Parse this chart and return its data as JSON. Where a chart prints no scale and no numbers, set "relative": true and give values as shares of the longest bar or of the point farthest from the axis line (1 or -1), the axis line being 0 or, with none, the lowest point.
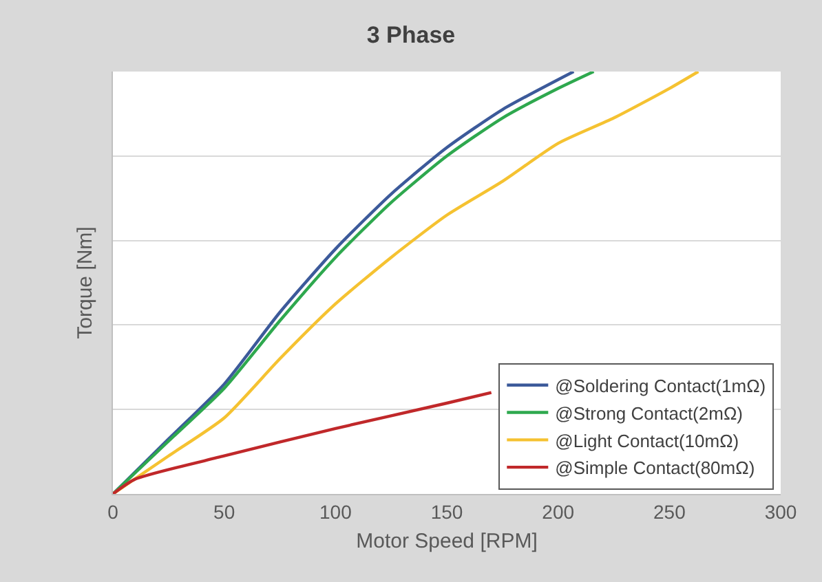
{
  "chart_data": {
    "type": "line",
    "title": "3 Phase",
    "xlabel": "Motor Speed [RPM]",
    "ylabel": "Torque [Nm]",
    "relative": true,
    "xlim": [
      0,
      300
    ],
    "xticks": [
      0,
      50,
      100,
      150,
      200,
      250,
      300
    ],
    "grid": "y",
    "legend": "bottom right",
    "marker": "none",
    "line_style": "solid",
    "series": [
      {
        "name": "@Soldering Contact(1mΩ)",
        "color": "#3c5a9a",
        "x": [
          0,
          25,
          50,
          75,
          100,
          125,
          150,
          175,
          207
        ],
        "values": [
          0,
          0.13,
          0.26,
          0.43,
          0.58,
          0.71,
          0.82,
          0.91,
          1.0
        ]
      },
      {
        "name": "@Strong Contact(2mΩ)",
        "color": "#2ea84e",
        "x": [
          0,
          25,
          50,
          75,
          100,
          125,
          150,
          175,
          200,
          216
        ],
        "values": [
          0,
          0.125,
          0.25,
          0.41,
          0.56,
          0.69,
          0.8,
          0.89,
          0.96,
          1.0
        ]
      },
      {
        "name": "@Light Contact(10mΩ)",
        "color": "#f5c231",
        "x": [
          0,
          25,
          50,
          75,
          100,
          125,
          150,
          175,
          200,
          225,
          250,
          263
        ],
        "values": [
          0,
          0.09,
          0.18,
          0.32,
          0.45,
          0.56,
          0.66,
          0.74,
          0.83,
          0.89,
          0.96,
          1.0
        ]
      },
      {
        "name": "@Simple Contact(80mΩ)",
        "color": "#c0282a",
        "x": [
          0,
          10,
          50,
          100,
          150,
          170
        ],
        "values": [
          0,
          0.035,
          0.09,
          0.155,
          0.215,
          0.24
        ]
      }
    ]
  }
}
